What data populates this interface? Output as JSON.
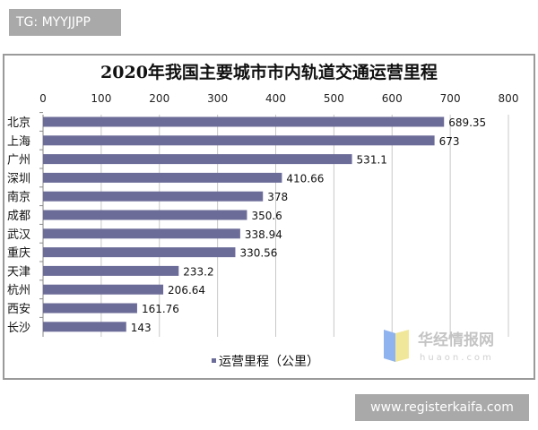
{
  "watermark_tag": "TG: MYYJJPP",
  "site_label": "www.registerkaifa.com",
  "logo": {
    "cn": "华经情报网",
    "en": "huaon.com"
  },
  "chart_data": {
    "type": "bar",
    "orientation": "horizontal",
    "title": "2020年我国主要城市市内轨道交通运营里程",
    "categories": [
      "北京",
      "上海",
      "广州",
      "深圳",
      "南京",
      "成都",
      "武汉",
      "重庆",
      "天津",
      "杭州",
      "西安",
      "长沙"
    ],
    "series": [
      {
        "name": "运营里程（公里）",
        "values": [
          689.35,
          673,
          531.1,
          410.66,
          378,
          350.6,
          338.94,
          330.56,
          233.2,
          206.64,
          161.76,
          143
        ],
        "labels": [
          "689.35",
          "673",
          "531.1",
          "410.66",
          "378",
          "350.6",
          "338.94",
          "330.56",
          "233.2",
          "206.64",
          "161.76",
          "143"
        ]
      }
    ],
    "xlim": [
      0,
      800
    ],
    "xticks": [
      "0",
      "100",
      "200",
      "300",
      "400",
      "500",
      "600",
      "700",
      "800"
    ],
    "x_axis_position": "top",
    "grid": true,
    "legend": "bottom-left",
    "colors": {
      "bar": "#6c6c99"
    }
  }
}
